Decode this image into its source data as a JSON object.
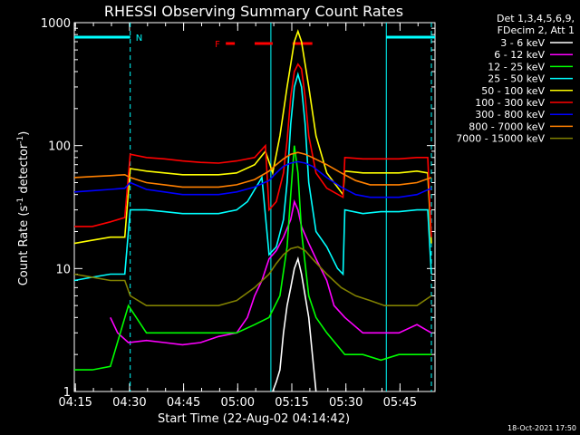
{
  "chart_data": {
    "type": "line",
    "title": "RHESSI Observing Summary Count Rates",
    "xlabel": "Start Time (22-Aug-02 04:14:42)",
    "ylabel": "Count Rate (s",
    "ylabel_sup": "-1",
    "ylabel_tail": " detector",
    "ylabel_sup2": "-1",
    "ylabel_end": ")",
    "yscale": "log",
    "ylim": [
      1,
      1000
    ],
    "xlim_minutes": [
      0,
      100
    ],
    "x_ticks": [
      {
        "label": "04:15",
        "minute": 0.3
      },
      {
        "label": "04:30",
        "minute": 15.3
      },
      {
        "label": "04:45",
        "minute": 30.3
      },
      {
        "label": "05:00",
        "minute": 45.3
      },
      {
        "label": "05:15",
        "minute": 60.3
      },
      {
        "label": "05:30",
        "minute": 75.3
      },
      {
        "label": "05:45",
        "minute": 90.3
      }
    ],
    "y_ticks": [
      {
        "label": "1",
        "value": 1
      },
      {
        "label": "10",
        "value": 10
      },
      {
        "label": "100",
        "value": 100
      },
      {
        "label": "1000",
        "value": 1000
      }
    ],
    "legend_header": [
      "Det 1,3,4,5,6,9,",
      "FDecim 2, Att 1"
    ],
    "legend_placement": "right",
    "timestamp": "18-Oct-2021 17:50",
    "flags": {
      "N_label": "N",
      "N_color": "#00ffff",
      "N_segments": [
        [
          0,
          15.5
        ],
        [
          86.5,
          100
        ]
      ],
      "F_label": "F",
      "F_color": "#ff0000",
      "F_segments": [
        [
          42,
          44.5
        ],
        [
          50,
          55
        ],
        [
          60.5,
          66
        ]
      ]
    },
    "boundaries": {
      "dashed_minutes": [
        15.5,
        99
      ],
      "solid_minutes": [
        54.5,
        86.5
      ],
      "color": "#00ffff"
    },
    "series": [
      {
        "name": "3 - 6 keV",
        "color": "#ffffff",
        "points": [
          [
            55,
            1
          ],
          [
            56,
            1.2
          ],
          [
            57,
            1.5
          ],
          [
            58,
            3
          ],
          [
            59,
            5
          ],
          [
            60,
            7
          ],
          [
            61,
            10
          ],
          [
            62,
            12
          ],
          [
            63,
            9
          ],
          [
            64,
            6
          ],
          [
            65,
            4
          ],
          [
            66,
            2
          ],
          [
            67,
            1
          ]
        ]
      },
      {
        "name": "6 - 12 keV",
        "color": "#ff00ff",
        "points": [
          [
            10,
            4
          ],
          [
            12,
            3
          ],
          [
            15,
            2.5
          ],
          [
            20,
            2.6
          ],
          [
            25,
            2.5
          ],
          [
            30,
            2.4
          ],
          [
            35,
            2.5
          ],
          [
            40,
            2.8
          ],
          [
            45,
            3
          ],
          [
            48,
            4
          ],
          [
            50,
            6
          ],
          [
            52,
            8
          ],
          [
            54,
            12
          ],
          [
            56,
            14
          ],
          [
            58,
            18
          ],
          [
            60,
            25
          ],
          [
            61,
            35
          ],
          [
            62,
            30
          ],
          [
            63,
            22
          ],
          [
            65,
            16
          ],
          [
            67,
            12
          ],
          [
            70,
            8
          ],
          [
            72,
            5
          ],
          [
            75,
            4
          ],
          [
            80,
            3
          ],
          [
            86,
            3
          ],
          [
            90,
            3
          ],
          [
            95,
            3.5
          ],
          [
            99,
            3
          ]
        ]
      },
      {
        "name": "12 - 25 keV",
        "color": "#00ff00",
        "points": [
          [
            0,
            1.5
          ],
          [
            5,
            1.5
          ],
          [
            10,
            1.6
          ],
          [
            15,
            5
          ],
          [
            20,
            3
          ],
          [
            25,
            3
          ],
          [
            30,
            3
          ],
          [
            35,
            3
          ],
          [
            40,
            3
          ],
          [
            45,
            3
          ],
          [
            50,
            3.5
          ],
          [
            54,
            4
          ],
          [
            57,
            6
          ],
          [
            59,
            15
          ],
          [
            60,
            40
          ],
          [
            61,
            100
          ],
          [
            62,
            60
          ],
          [
            63,
            20
          ],
          [
            65,
            6
          ],
          [
            67,
            4
          ],
          [
            70,
            3
          ],
          [
            75,
            2
          ],
          [
            80,
            2
          ],
          [
            85,
            1.8
          ],
          [
            90,
            2
          ],
          [
            95,
            2
          ],
          [
            99,
            2
          ]
        ]
      },
      {
        "name": "25 - 50 keV",
        "color": "#00ffff",
        "points": [
          [
            0,
            8
          ],
          [
            5,
            8.5
          ],
          [
            10,
            9
          ],
          [
            14,
            9
          ],
          [
            15.5,
            30
          ],
          [
            20,
            30
          ],
          [
            25,
            29
          ],
          [
            30,
            28
          ],
          [
            35,
            28
          ],
          [
            40,
            28
          ],
          [
            45,
            30
          ],
          [
            48,
            35
          ],
          [
            52,
            55
          ],
          [
            54,
            13
          ],
          [
            56,
            15
          ],
          [
            58,
            25
          ],
          [
            59,
            50
          ],
          [
            60,
            150
          ],
          [
            61,
            300
          ],
          [
            62,
            380
          ],
          [
            63,
            300
          ],
          [
            64,
            150
          ],
          [
            65,
            50
          ],
          [
            67,
            20
          ],
          [
            70,
            15
          ],
          [
            73,
            10
          ],
          [
            74.5,
            9
          ],
          [
            75,
            30
          ],
          [
            80,
            28
          ],
          [
            85,
            29
          ],
          [
            90,
            29
          ],
          [
            95,
            30
          ],
          [
            98,
            30
          ],
          [
            99,
            9
          ]
        ]
      },
      {
        "name": "50 - 100 keV",
        "color": "#ffff00",
        "points": [
          [
            0,
            16
          ],
          [
            5,
            17
          ],
          [
            10,
            18
          ],
          [
            14,
            18
          ],
          [
            15.5,
            65
          ],
          [
            20,
            62
          ],
          [
            25,
            60
          ],
          [
            30,
            58
          ],
          [
            35,
            58
          ],
          [
            40,
            58
          ],
          [
            45,
            60
          ],
          [
            50,
            70
          ],
          [
            53,
            90
          ],
          [
            55,
            60
          ],
          [
            57,
            120
          ],
          [
            59,
            300
          ],
          [
            61,
            700
          ],
          [
            62,
            850
          ],
          [
            63,
            700
          ],
          [
            65,
            300
          ],
          [
            67,
            120
          ],
          [
            70,
            60
          ],
          [
            74.5,
            40
          ],
          [
            75,
            62
          ],
          [
            80,
            60
          ],
          [
            85,
            60
          ],
          [
            90,
            60
          ],
          [
            95,
            62
          ],
          [
            98,
            60
          ],
          [
            99,
            16
          ]
        ]
      },
      {
        "name": "100 - 300 keV",
        "color": "#ff0000",
        "points": [
          [
            0,
            22
          ],
          [
            5,
            22
          ],
          [
            10,
            24
          ],
          [
            14,
            26
          ],
          [
            15.5,
            85
          ],
          [
            20,
            80
          ],
          [
            25,
            78
          ],
          [
            30,
            75
          ],
          [
            35,
            73
          ],
          [
            40,
            72
          ],
          [
            45,
            75
          ],
          [
            50,
            80
          ],
          [
            53,
            100
          ],
          [
            54,
            30
          ],
          [
            56,
            35
          ],
          [
            58,
            60
          ],
          [
            59,
            110
          ],
          [
            60,
            250
          ],
          [
            61,
            400
          ],
          [
            62,
            460
          ],
          [
            63,
            420
          ],
          [
            64,
            250
          ],
          [
            65,
            120
          ],
          [
            67,
            60
          ],
          [
            70,
            45
          ],
          [
            74.5,
            38
          ],
          [
            75,
            80
          ],
          [
            80,
            78
          ],
          [
            85,
            78
          ],
          [
            90,
            78
          ],
          [
            95,
            80
          ],
          [
            98,
            80
          ],
          [
            99,
            18
          ]
        ]
      },
      {
        "name": "300 - 800 keV",
        "color": "#0000ff",
        "points": [
          [
            0,
            42
          ],
          [
            5,
            43
          ],
          [
            10,
            44
          ],
          [
            14,
            45
          ],
          [
            15.5,
            50
          ],
          [
            20,
            44
          ],
          [
            25,
            42
          ],
          [
            30,
            40
          ],
          [
            35,
            40
          ],
          [
            40,
            40
          ],
          [
            45,
            42
          ],
          [
            50,
            46
          ],
          [
            54,
            52
          ],
          [
            56,
            60
          ],
          [
            58,
            68
          ],
          [
            60,
            72
          ],
          [
            62,
            74
          ],
          [
            64,
            72
          ],
          [
            66,
            68
          ],
          [
            70,
            55
          ],
          [
            74,
            46
          ],
          [
            78,
            40
          ],
          [
            82,
            38
          ],
          [
            86,
            38
          ],
          [
            90,
            38
          ],
          [
            95,
            40
          ],
          [
            99,
            45
          ]
        ]
      },
      {
        "name": "800 - 7000 keV",
        "color": "#ff8000",
        "points": [
          [
            0,
            55
          ],
          [
            5,
            56
          ],
          [
            10,
            57
          ],
          [
            14,
            58
          ],
          [
            15.5,
            55
          ],
          [
            20,
            50
          ],
          [
            25,
            48
          ],
          [
            30,
            46
          ],
          [
            35,
            46
          ],
          [
            40,
            46
          ],
          [
            45,
            48
          ],
          [
            50,
            53
          ],
          [
            54,
            62
          ],
          [
            56,
            70
          ],
          [
            58,
            78
          ],
          [
            60,
            85
          ],
          [
            62,
            88
          ],
          [
            64,
            85
          ],
          [
            66,
            80
          ],
          [
            70,
            70
          ],
          [
            74,
            60
          ],
          [
            78,
            52
          ],
          [
            82,
            48
          ],
          [
            86,
            48
          ],
          [
            90,
            48
          ],
          [
            95,
            50
          ],
          [
            99,
            55
          ]
        ]
      },
      {
        "name": "7000 - 15000 keV",
        "color": "#808000",
        "points": [
          [
            0,
            9
          ],
          [
            5,
            8.5
          ],
          [
            10,
            8
          ],
          [
            14,
            8
          ],
          [
            15.5,
            6
          ],
          [
            20,
            5
          ],
          [
            25,
            5
          ],
          [
            30,
            5
          ],
          [
            35,
            5
          ],
          [
            40,
            5
          ],
          [
            45,
            5.5
          ],
          [
            50,
            7
          ],
          [
            54,
            9
          ],
          [
            56,
            11
          ],
          [
            58,
            13
          ],
          [
            60,
            14.5
          ],
          [
            62,
            15
          ],
          [
            64,
            14
          ],
          [
            66,
            12
          ],
          [
            70,
            9
          ],
          [
            74,
            7
          ],
          [
            78,
            6
          ],
          [
            82,
            5.5
          ],
          [
            86,
            5
          ],
          [
            90,
            5
          ],
          [
            95,
            5
          ],
          [
            99,
            6
          ]
        ]
      }
    ]
  }
}
